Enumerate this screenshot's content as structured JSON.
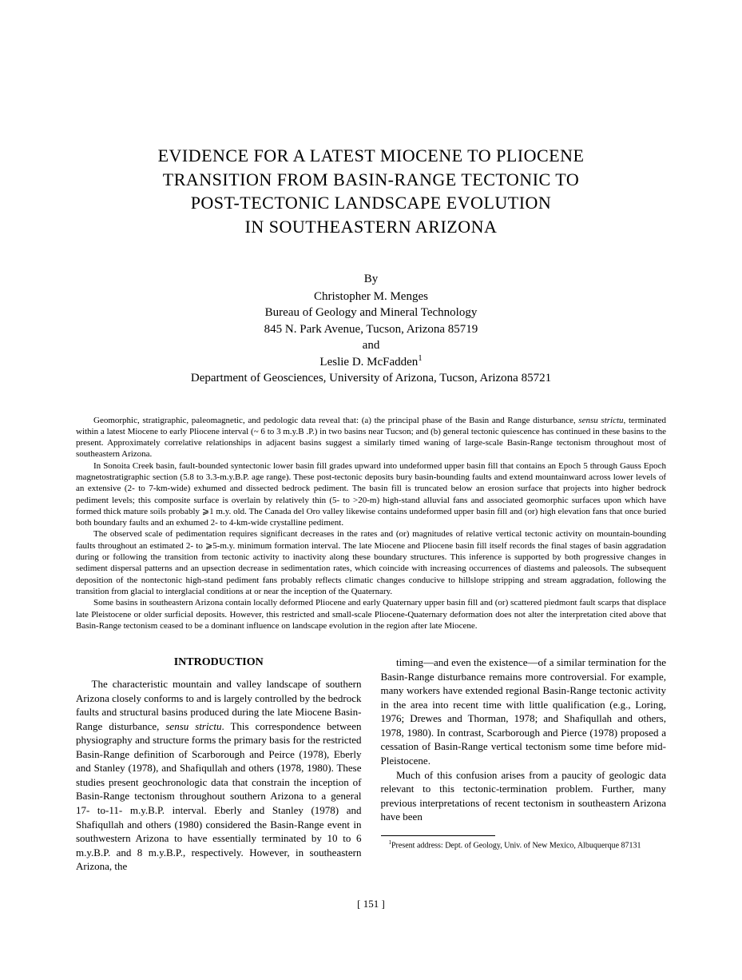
{
  "title_lines": [
    "EVIDENCE FOR A LATEST MIOCENE TO PLIOCENE",
    "TRANSITION FROM BASIN-RANGE TECTONIC TO",
    "POST-TECTONIC LANDSCAPE EVOLUTION",
    "IN SOUTHEASTERN ARIZONA"
  ],
  "authors": {
    "by": "By",
    "author1_name": "Christopher M. Menges",
    "author1_affil1": "Bureau of Geology and Mineral Technology",
    "author1_affil2": "845 N. Park Avenue, Tucson, Arizona 85719",
    "and": "and",
    "author2_name": "Leslie D. McFadden",
    "author2_sup": "1",
    "author2_affil": "Department of Geosciences, University of Arizona, Tucson, Arizona 85721"
  },
  "abstract": {
    "p1_a": "Geomorphic, stratigraphic, paleomagnetic, and pedologic data reveal that: (a) the principal phase of the Basin and Range disturbance, ",
    "p1_i1": "sensu strictu",
    "p1_b": ", terminated within a latest Miocene to early Pliocene interval (~ 6 to 3 m.y.B .P.) in two basins near Tucson; and (b) general tectonic quiescence has continued in these basins to the present. Approximately correlative relationships in adjacent basins suggest a similarly timed waning of large-scale Basin-Range tectonism throughout most of southeastern Arizona.",
    "p2": "In Sonoita Creek basin, fault-bounded syntectonic lower basin fill grades upward into undeformed upper basin fill that contains an Epoch 5 through Gauss Epoch magnetostratigraphic section (5.8 to 3.3-m.y.B.P. age range). These post-tectonic deposits bury basin-bounding faults and extend mountainward across lower levels of an extensive (2- to 7-km-wide) exhumed and dissected bedrock pediment. The basin fill is truncated below an erosion surface that projects into higher bedrock pediment levels; this composite surface is overlain by relatively thin (5- to >20-m) high-stand alluvial fans and associated geomorphic surfaces upon which have formed thick mature soils probably ⩾1 m.y. old. The Canada del Oro valley likewise contains undeformed upper basin fill and (or) high elevation fans that once buried both boundary faults and an exhumed 2- to 4-km-wide crystalline pediment.",
    "p3": "The observed scale of pedimentation requires significant decreases in the rates and (or) magnitudes of relative vertical tectonic activity on mountain-bounding faults throughout an estimated 2- to ⩾5-m.y. minimum formation interval. The late Miocene and Pliocene basin fill itself records the final stages of basin aggradation during or following the transition from tectonic activity to inactivity along these boundary structures. This inference is supported by both progressive changes in sediment dispersal patterns and an upsection decrease in sedimentation rates, which coincide with increasing occurrences of diastems and paleosols. The subsequent deposition of the nontectonic high-stand pediment fans probably reflects climatic changes conducive to hillslope stripping and stream aggradation, following the transition from glacial to interglacial conditions at or near the inception of the Quaternary.",
    "p4": "Some basins in southeastern Arizona contain locally deformed Pliocene and early Quaternary upper basin fill and (or) scattered piedmont fault scarps that displace late Pleistocene or older surficial deposits. However, this restricted and small-scale Pliocene-Quaternary deformation does not alter the interpretation cited above that Basin-Range tectonism ceased to be a dominant influence on landscape evolution in the region after late Miocene."
  },
  "introduction": {
    "heading": "INTRODUCTION",
    "col1_p1_a": "The characteristic mountain and valley landscape of southern Arizona closely conforms to and is largely controlled by the bedrock faults and structural basins produced during the late Miocene Basin-Range disturbance, ",
    "col1_p1_i": "sensu strictu",
    "col1_p1_b": ". This correspondence between physiography and structure forms the primary basis for the restricted Basin-Range definition of Scarborough and Peirce (1978), Eberly and Stanley (1978), and Shafiqullah and others (1978, 1980). These studies present geochronologic data that constrain the inception of Basin-Range tectonism throughout southern Arizona to a general 17- to-11- m.y.B.P. interval. Eberly and Stanley (1978) and Shafiqullah and others (1980) considered the Basin-Range event in southwestern Arizona to have essentially terminated by 10 to 6 m.y.B.P. and 8 m.y.B.P., respectively. However, in southeastern Arizona, the",
    "col2_p1": "timing—and even the existence—of a similar termination for the Basin-Range disturbance remains more controversial. For example, many workers have extended regional Basin-Range tectonic activity in the area into recent time with little qualification (e.g., Loring, 1976; Drewes and Thorman, 1978; and Shafiqullah and others, 1978, 1980). In contrast, Scarborough and Pierce (1978) proposed a cessation of Basin-Range vertical tectonism some time before mid-Pleistocene.",
    "col2_p2": "Much of this confusion arises from a paucity of geologic data relevant to this tectonic-termination problem. Further, many previous interpretations of recent tectonism in southeastern Arizona have been"
  },
  "footnote": {
    "sup": "1",
    "text": "Present address: Dept. of Geology, Univ. of New Mexico, Albuquerque 87131"
  },
  "page_number": "[ 151 ]"
}
